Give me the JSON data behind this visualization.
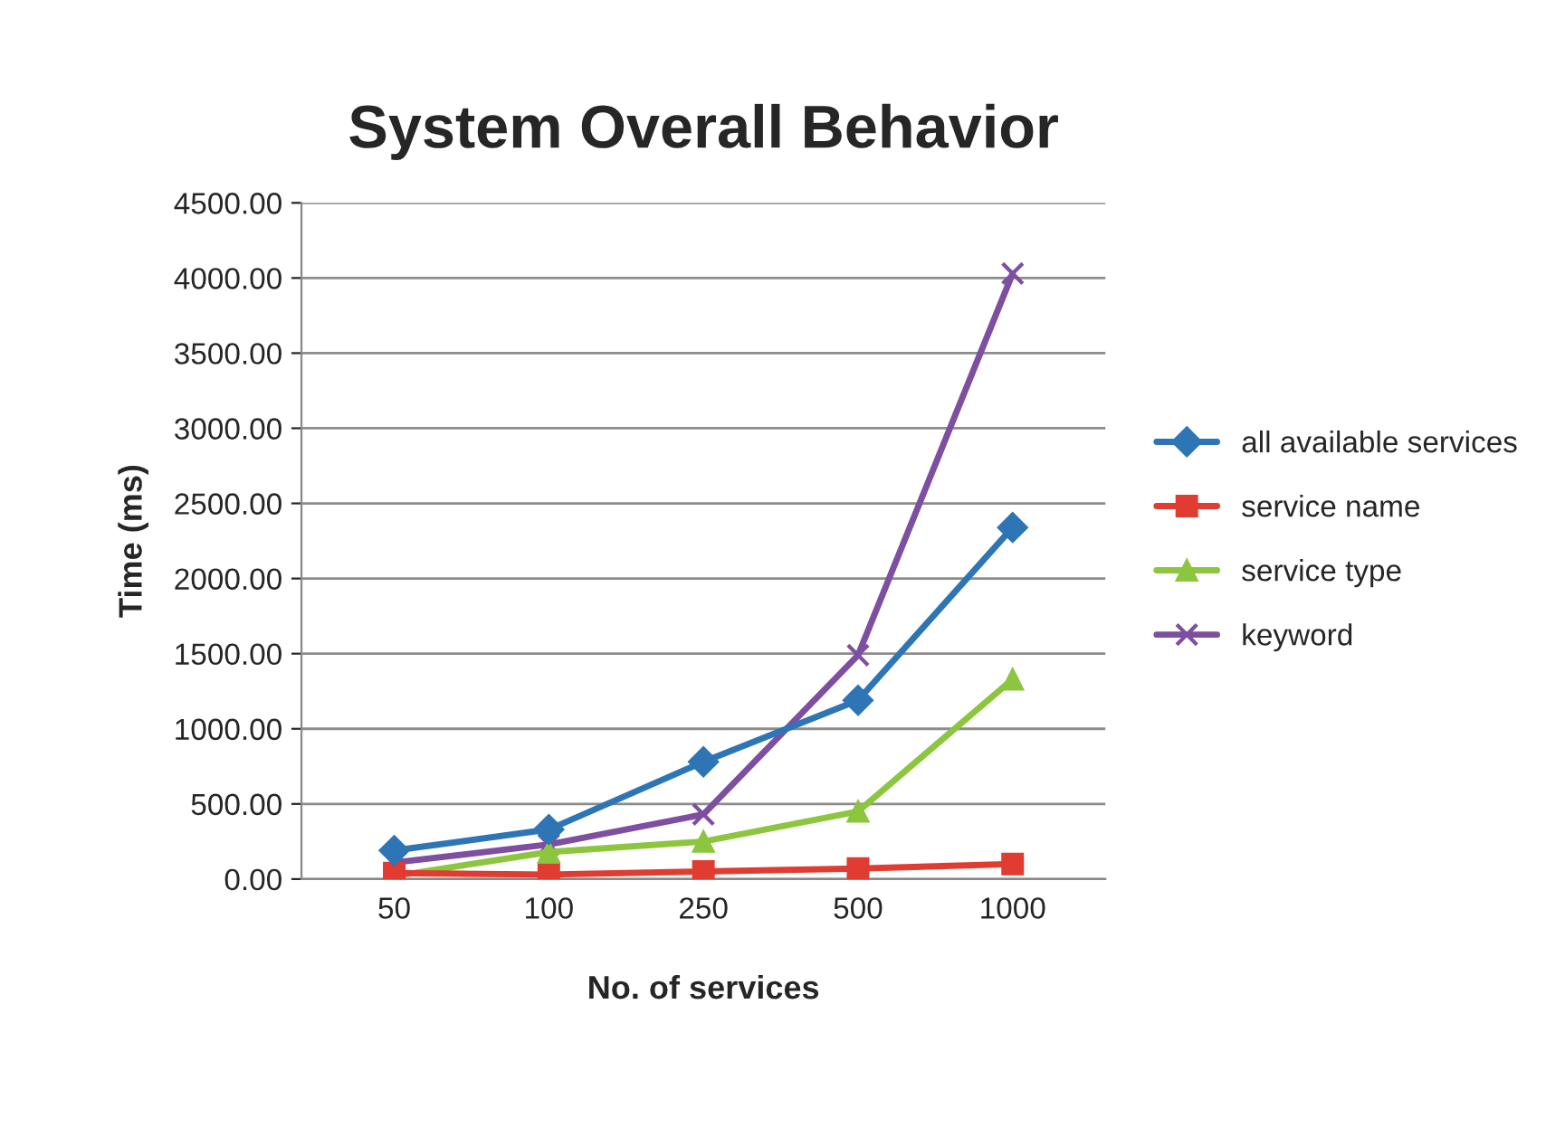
{
  "chart_data": {
    "type": "line",
    "title": "System Overall Behavior",
    "xlabel": "No. of services",
    "ylabel": "Time (ms)",
    "categories": [
      "50",
      "100",
      "250",
      "500",
      "1000"
    ],
    "series": [
      {
        "name": "all available services",
        "color": "#2e75b6",
        "marker": "diamond",
        "values": [
          190,
          330,
          780,
          1190,
          2340
        ]
      },
      {
        "name": "service name",
        "color": "#e03c31",
        "marker": "square",
        "values": [
          40,
          30,
          50,
          70,
          100
        ]
      },
      {
        "name": "service type",
        "color": "#8cc63f",
        "marker": "triangle",
        "values": [
          20,
          180,
          250,
          450,
          1330
        ]
      },
      {
        "name": "keyword",
        "color": "#7e4fa0",
        "marker": "cross",
        "values": [
          110,
          230,
          430,
          1490,
          4030
        ]
      }
    ],
    "ylim": [
      0,
      4500
    ],
    "yticks": [
      {
        "value": 0,
        "label": "0.00"
      },
      {
        "value": 500,
        "label": "500.00"
      },
      {
        "value": 1000,
        "label": "1000.00"
      },
      {
        "value": 1500,
        "label": "1500.00"
      },
      {
        "value": 2000,
        "label": "2000.00"
      },
      {
        "value": 2500,
        "label": "2500.00"
      },
      {
        "value": 3000,
        "label": "3000.00"
      },
      {
        "value": 3500,
        "label": "3500.00"
      },
      {
        "value": 4000,
        "label": "4000.00"
      },
      {
        "value": 4500,
        "label": "4500.00"
      }
    ],
    "grid": "y",
    "legend": "right"
  }
}
